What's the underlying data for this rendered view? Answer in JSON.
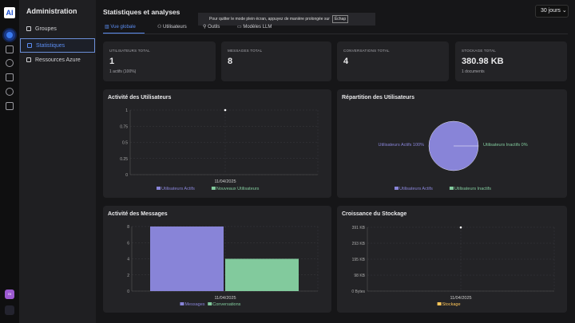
{
  "app": {
    "logo": "AI",
    "avatar_initials": "Gt"
  },
  "sidebar": {
    "title": "Administration",
    "items": [
      {
        "label": "Groupes"
      },
      {
        "label": "Statistiques"
      },
      {
        "label": "Ressources Azure"
      }
    ]
  },
  "header": {
    "title": "Statistiques et analyses",
    "range": "30 jours",
    "range_chevron": "⌄"
  },
  "toast": {
    "text": "Pour quitter le mode plein écran, appuyez de manière prolongée sur",
    "key": "Échap"
  },
  "tabs": [
    {
      "label": "Vue globale"
    },
    {
      "label": "Utilisateurs"
    },
    {
      "label": "Outils"
    },
    {
      "label": "Modèles LLM"
    }
  ],
  "stats": [
    {
      "label": "UTILISATEURS TOTAL",
      "value": "1",
      "sub": "1 actifs (100%)"
    },
    {
      "label": "MESSAGES TOTAL",
      "value": "8",
      "sub": ""
    },
    {
      "label": "CONVERSATIONS TOTAL",
      "value": "4",
      "sub": ""
    },
    {
      "label": "STOCKAGE TOTAL",
      "value": "380.98 KB",
      "sub": "1 documents"
    }
  ],
  "colors": {
    "purple": "#8884d8",
    "green": "#82ca9d",
    "orange": "#ffc658",
    "accent": "#5b8cf0"
  },
  "chart_data": [
    {
      "type": "line",
      "title": "Activité des Utilisateurs",
      "categories": [
        "11/04/2025"
      ],
      "series": [
        {
          "name": "Utilisateurs Actifs",
          "values": [
            1
          ]
        },
        {
          "name": "Nouveaux Utilisateurs",
          "values": [
            1
          ]
        }
      ],
      "yticks": [
        "0",
        "0.25",
        "0.5",
        "0.75",
        "1"
      ],
      "ylim": [
        0,
        1
      ],
      "legend": "bottom"
    },
    {
      "type": "pie",
      "title": "Répartition des Utilisateurs",
      "slices": [
        {
          "name": "Utilisateurs Actifs",
          "value": 100,
          "label": "Utilisateurs Actifs 100%"
        },
        {
          "name": "Utilisateurs Inactifs",
          "value": 0,
          "label": "Utilisateurs Inactifs 0%"
        }
      ],
      "legend": "bottom"
    },
    {
      "type": "bar",
      "title": "Activité des Messages",
      "categories": [
        "11/04/2025"
      ],
      "series": [
        {
          "name": "Messages",
          "values": [
            8
          ]
        },
        {
          "name": "Conversations",
          "values": [
            4
          ]
        }
      ],
      "yticks": [
        "0",
        "2",
        "4",
        "6",
        "8"
      ],
      "ylim": [
        0,
        8
      ],
      "legend": "bottom"
    },
    {
      "type": "line",
      "title": "Croissance du Stockage",
      "categories": [
        "11/04/2025"
      ],
      "series": [
        {
          "name": "Stockage",
          "values": [
            390.12
          ]
        }
      ],
      "yticks": [
        "0 Bytes",
        "98 KB",
        "195 KB",
        "293 KB",
        "391 KB"
      ],
      "ylim": [
        0,
        391
      ],
      "legend": "bottom"
    }
  ]
}
